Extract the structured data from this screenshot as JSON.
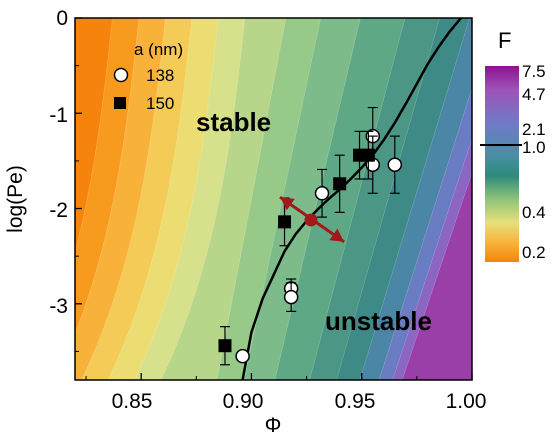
{
  "chart_data": {
    "type": "scatter",
    "xlabel": "Φ",
    "ylabel": "log(Pe)",
    "xlim": [
      0.82,
      1.0
    ],
    "ylim": [
      -3.8,
      0
    ],
    "xticks": [
      "0.85",
      "0.90",
      "0.95",
      "1.00"
    ],
    "yticks": [
      "0",
      "-1",
      "-2",
      "-3"
    ],
    "region_labels": {
      "stable": "stable",
      "unstable": "unstable"
    },
    "legend": {
      "title": "a (nm)",
      "position": "top-left",
      "entries": [
        "138",
        "150"
      ]
    },
    "colorbar": {
      "title": "F",
      "ticks": [
        "7.5",
        "4.7",
        "2.1",
        "1.0",
        "0.4",
        "0.2"
      ],
      "colors": [
        "#8e1290",
        "#9d53b8",
        "#6f7bc8",
        "#4a8ea6",
        "#2e8a7c",
        "#8fc37a",
        "#e8e07a",
        "#f7b33b",
        "#f6840c"
      ]
    },
    "series": [
      {
        "name": "138",
        "marker": "open-circle",
        "points": [
          {
            "x": 0.896,
            "y": -3.55,
            "err": 0.0
          },
          {
            "x": 0.918,
            "y": -2.84,
            "err": 0.1
          },
          {
            "x": 0.918,
            "y": -2.93,
            "err": 0.15
          },
          {
            "x": 0.932,
            "y": -1.84,
            "err": 0.25
          },
          {
            "x": 0.955,
            "y": -1.24,
            "err": 0.3
          },
          {
            "x": 0.955,
            "y": -1.54,
            "err": 0.3
          },
          {
            "x": 0.965,
            "y": -1.54,
            "err": 0.3
          }
        ]
      },
      {
        "name": "150",
        "marker": "filled-square",
        "points": [
          {
            "x": 0.888,
            "y": -3.44,
            "err": 0.2
          },
          {
            "x": 0.915,
            "y": -2.14,
            "err": 0.25
          },
          {
            "x": 0.94,
            "y": -1.74,
            "err": 0.3
          },
          {
            "x": 0.949,
            "y": -1.44,
            "err": 0.25
          },
          {
            "x": 0.953,
            "y": -1.44,
            "err": 0.25
          }
        ]
      }
    ],
    "boundary_curve": [
      [
        0.896,
        -3.8
      ],
      [
        0.9,
        -3.3
      ],
      [
        0.905,
        -2.95
      ],
      [
        0.91,
        -2.7
      ],
      [
        0.915,
        -2.45
      ],
      [
        0.92,
        -2.27
      ],
      [
        0.925,
        -2.13
      ],
      [
        0.93,
        -2.01
      ],
      [
        0.935,
        -1.9
      ],
      [
        0.94,
        -1.8
      ],
      [
        0.945,
        -1.69
      ],
      [
        0.95,
        -1.57
      ],
      [
        0.955,
        -1.44
      ],
      [
        0.96,
        -1.28
      ],
      [
        0.965,
        -1.1
      ],
      [
        0.97,
        -0.9
      ],
      [
        0.975,
        -0.69
      ],
      [
        0.98,
        -0.48
      ],
      [
        0.985,
        -0.3
      ],
      [
        0.99,
        -0.14
      ],
      [
        0.995,
        0.0
      ]
    ],
    "arrow": {
      "center": [
        0.927,
        -2.12
      ],
      "from": [
        0.913,
        -1.88
      ],
      "to": [
        0.942,
        -2.35
      ]
    },
    "grid": false
  }
}
